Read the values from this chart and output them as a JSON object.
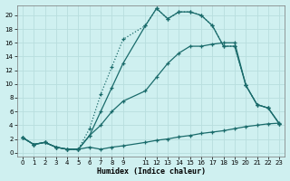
{
  "xlabel": "Humidex (Indice chaleur)",
  "bg_color": "#cff0f0",
  "grid_color": "#b8dede",
  "line_color": "#1a6b6b",
  "xlim": [
    -0.5,
    23.5
  ],
  "ylim": [
    -0.5,
    21.5
  ],
  "xticks": [
    0,
    1,
    2,
    3,
    4,
    5,
    6,
    7,
    8,
    9,
    11,
    12,
    13,
    14,
    15,
    16,
    17,
    18,
    19,
    20,
    21,
    22,
    23
  ],
  "yticks": [
    0,
    2,
    4,
    6,
    8,
    10,
    12,
    14,
    16,
    18,
    20
  ],
  "line_bottom_x": [
    0,
    1,
    2,
    3,
    4,
    5,
    6,
    7,
    8,
    9,
    11,
    12,
    13,
    14,
    15,
    16,
    17,
    18,
    19,
    20,
    21,
    22,
    23
  ],
  "line_bottom_y": [
    2.2,
    1.2,
    1.5,
    0.8,
    0.5,
    0.5,
    0.8,
    0.5,
    0.8,
    1.0,
    1.5,
    1.8,
    2.0,
    2.3,
    2.5,
    2.8,
    3.0,
    3.2,
    3.5,
    3.8,
    4.0,
    4.2,
    4.3
  ],
  "line_mid_x": [
    0,
    1,
    2,
    3,
    4,
    5,
    6,
    7,
    8,
    9,
    11,
    12,
    13,
    14,
    15,
    16,
    17,
    18,
    19,
    20,
    21,
    22,
    23
  ],
  "line_mid_y": [
    2.2,
    1.2,
    1.5,
    0.8,
    0.5,
    0.5,
    2.5,
    4.0,
    6.0,
    7.5,
    9.0,
    11.0,
    13.0,
    14.5,
    15.5,
    15.5,
    15.8,
    16.0,
    16.0,
    9.8,
    7.0,
    6.5,
    4.2
  ],
  "line_main_x": [
    0,
    1,
    2,
    3,
    4,
    5,
    6,
    7,
    8,
    9,
    11,
    12,
    13,
    14,
    15,
    16,
    17,
    18,
    19,
    20,
    21,
    22,
    23
  ],
  "line_main_y": [
    2.2,
    1.2,
    1.5,
    0.8,
    0.5,
    0.5,
    2.5,
    6.0,
    9.5,
    13.0,
    18.5,
    21.0,
    19.5,
    20.5,
    20.5,
    20.0,
    18.5,
    15.5,
    15.5,
    9.8,
    7.0,
    6.5,
    4.2
  ],
  "line_dot_x": [
    0,
    1,
    2,
    3,
    4,
    5,
    6,
    7,
    8,
    9,
    11,
    12,
    13,
    14,
    15,
    16,
    17,
    18,
    19,
    20,
    21,
    22,
    23
  ],
  "line_dot_y": [
    2.2,
    1.2,
    1.5,
    0.8,
    0.5,
    0.5,
    3.5,
    8.5,
    12.5,
    16.5,
    18.5,
    21.0,
    19.5,
    20.5,
    20.5,
    20.0,
    18.5,
    15.5,
    15.5,
    9.8,
    7.0,
    6.5,
    4.2
  ]
}
